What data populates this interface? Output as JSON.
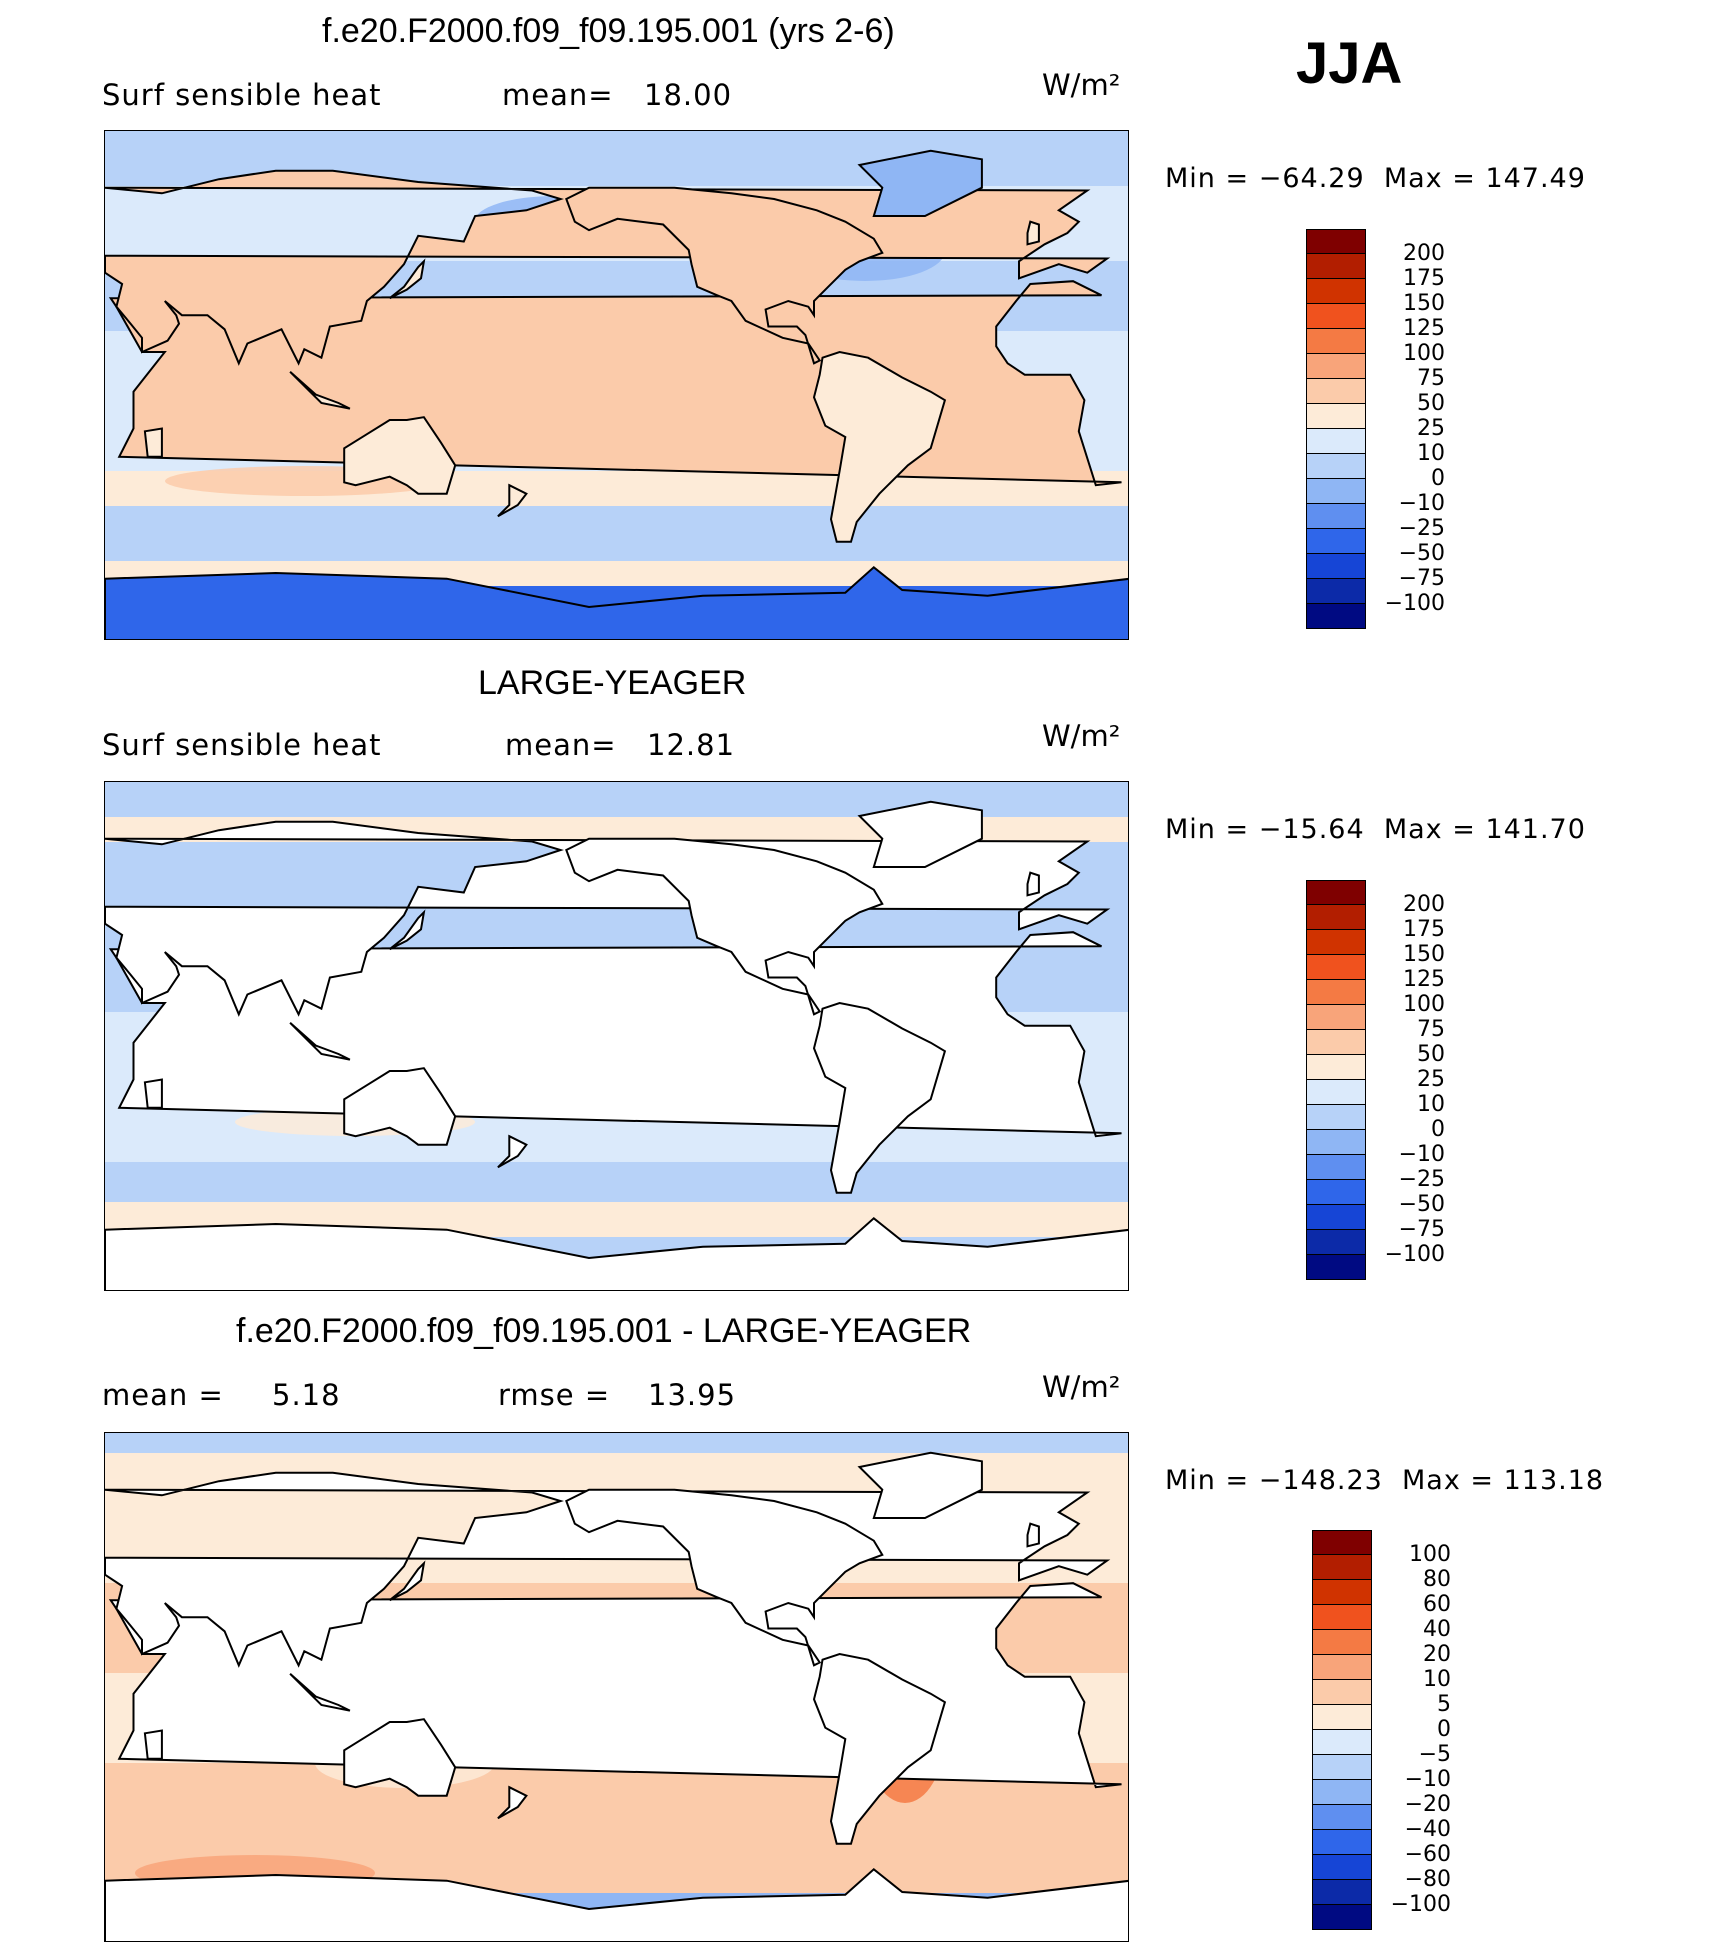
{
  "season": "JJA",
  "panels": [
    {
      "title": "f.e20.F2000.f09_f09.195.001 (yrs 2-6)",
      "left_label": "Surf sensible heat",
      "mid_label": "mean=",
      "mid_value": "18.00",
      "units": "W/m²",
      "min_label": "Min",
      "min_value": "−64.29",
      "max_label": "Max",
      "max_value": "147.49",
      "land": "filled",
      "colorbar": {
        "labels": [
          "200",
          "175",
          "150",
          "125",
          "100",
          "75",
          "50",
          "25",
          "10",
          "0",
          "−10",
          "−25",
          "−50",
          "−75",
          "−100"
        ],
        "colors": [
          "#7f0000",
          "#b21e00",
          "#d03300",
          "#f0521e",
          "#f47a44",
          "#f8a47a",
          "#fbcbaa",
          "#fdebd8",
          "#dbeafb",
          "#b7d2f8",
          "#8fb6f4",
          "#5f8ff0",
          "#2f66ea",
          "#1645d6",
          "#0c2aa8",
          "#000a82"
        ]
      }
    },
    {
      "title": "LARGE-YEAGER",
      "left_label": "Surf sensible heat",
      "mid_label": "mean=",
      "mid_value": "12.81",
      "units": "W/m²",
      "min_label": "Min",
      "min_value": "−15.64",
      "max_label": "Max",
      "max_value": "141.70",
      "land": "blank",
      "colorbar": {
        "labels": [
          "200",
          "175",
          "150",
          "125",
          "100",
          "75",
          "50",
          "25",
          "10",
          "0",
          "−10",
          "−25",
          "−50",
          "−75",
          "−100"
        ],
        "colors": [
          "#7f0000",
          "#b21e00",
          "#d03300",
          "#f0521e",
          "#f47a44",
          "#f8a47a",
          "#fbcbaa",
          "#fdebd8",
          "#dbeafb",
          "#b7d2f8",
          "#8fb6f4",
          "#5f8ff0",
          "#2f66ea",
          "#1645d6",
          "#0c2aa8",
          "#000a82"
        ]
      }
    },
    {
      "title": "f.e20.F2000.f09_f09.195.001 - LARGE-YEAGER",
      "left_label": "mean =",
      "left_value": "5.18",
      "mid_label": "rmse =",
      "mid_value": "13.95",
      "units": "W/m²",
      "min_label": "Min",
      "min_value": "−148.23",
      "max_label": "Max",
      "max_value": "113.18",
      "land": "blank",
      "colorbar": {
        "labels": [
          "100",
          "80",
          "60",
          "40",
          "20",
          "10",
          "5",
          "0",
          "−5",
          "−10",
          "−20",
          "−40",
          "−60",
          "−80",
          "−100"
        ],
        "colors": [
          "#7f0000",
          "#b21e00",
          "#d03300",
          "#f0521e",
          "#f47a44",
          "#f8a47a",
          "#fbcbaa",
          "#fdebd8",
          "#dbeafb",
          "#b7d2f8",
          "#8fb6f4",
          "#5f8ff0",
          "#2f66ea",
          "#1645d6",
          "#0c2aa8",
          "#000a82"
        ]
      }
    }
  ],
  "colors": {
    "ocean_light": "#dbeafb",
    "ocean_mid": "#b7d2f8",
    "ocean_cool": "#8fb6f4",
    "antarctic": "#2f66ea",
    "warm_light": "#fdebd8",
    "warm_mid": "#fbcbaa",
    "warm_hot": "#f47a44"
  }
}
